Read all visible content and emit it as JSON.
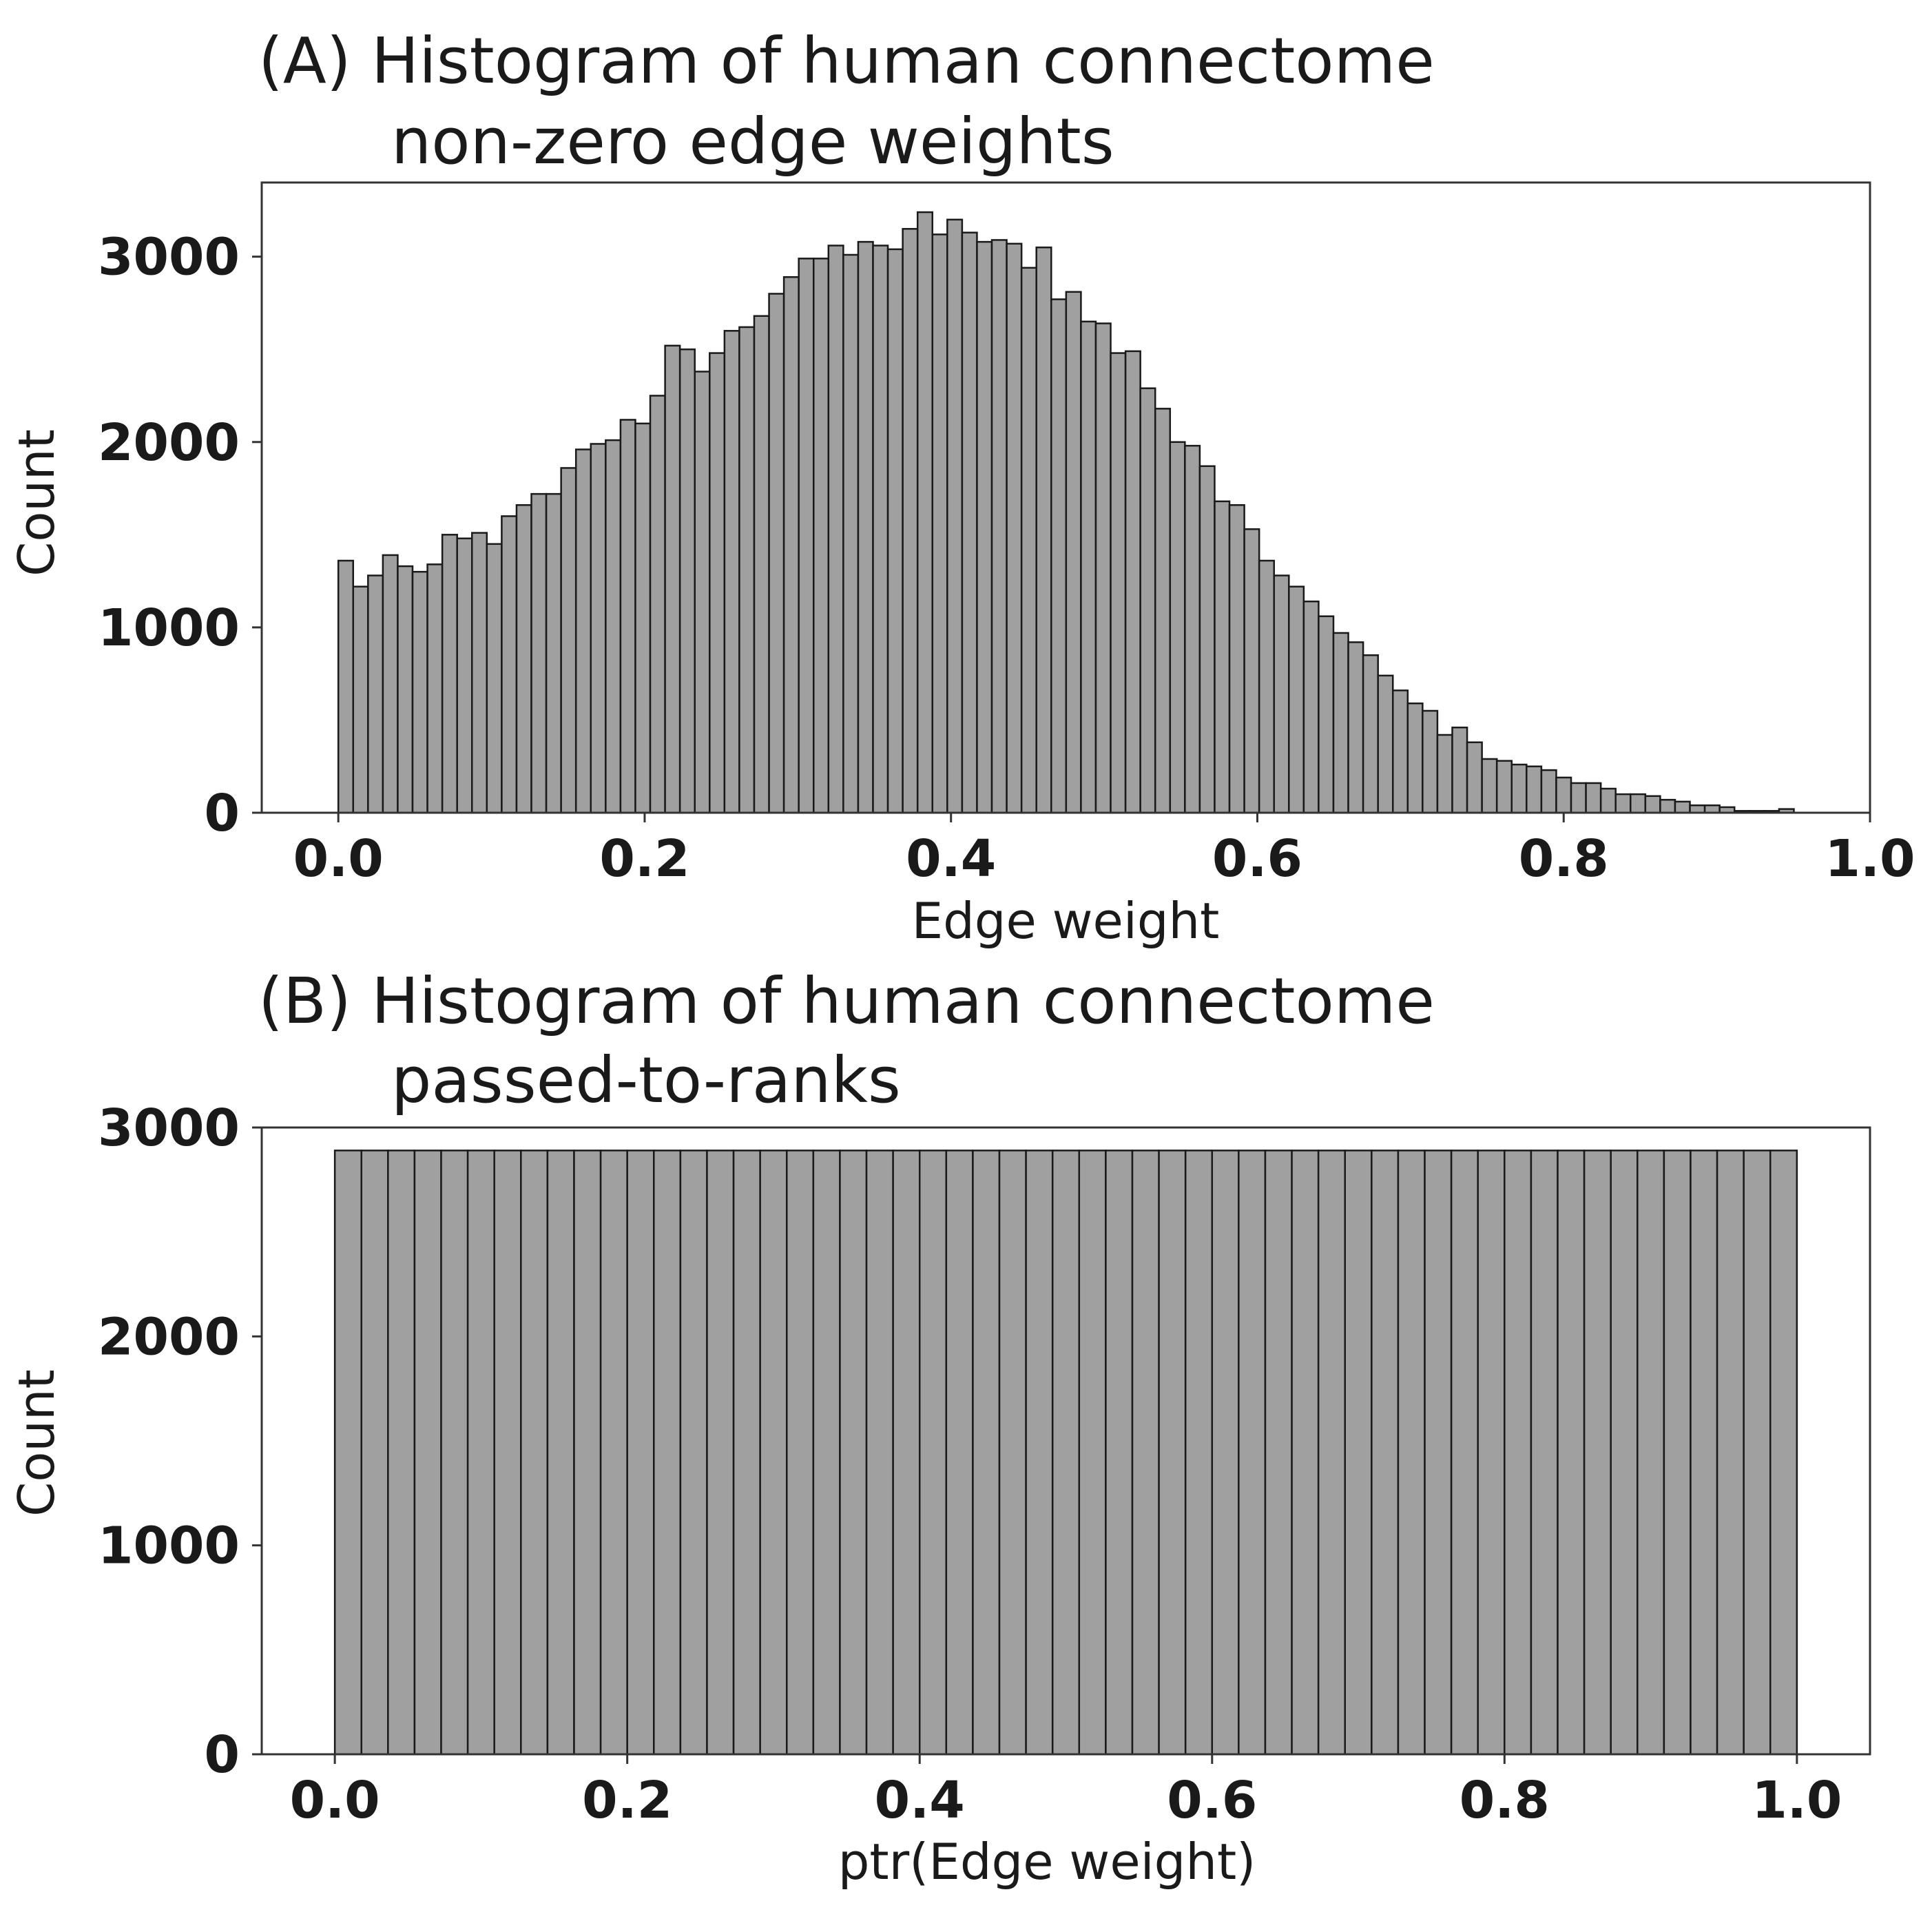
{
  "colors": {
    "bar_fill": "#a0a0a0",
    "bar_edge": "#1a1a1a",
    "text": "#1a1a1a"
  },
  "chart_data": [
    {
      "type": "bar",
      "title_lines": [
        "(A) Histogram of human connectome",
        "non-zero edge weights"
      ],
      "xlabel": "Edge weight",
      "ylabel": "Count",
      "xlim": [
        -0.05,
        1.0
      ],
      "ylim": [
        0,
        3400
      ],
      "xticks": [
        "0.0",
        "0.2",
        "0.4",
        "0.6",
        "0.8",
        "1.0"
      ],
      "yticks": [
        "0",
        "1000",
        "2000",
        "3000"
      ],
      "bin_range": [
        0.0,
        0.96
      ],
      "values": [
        1360,
        1220,
        1280,
        1390,
        1330,
        1300,
        1340,
        1500,
        1480,
        1510,
        1450,
        1600,
        1660,
        1720,
        1720,
        1860,
        1960,
        1990,
        2010,
        2120,
        2100,
        2250,
        2520,
        2500,
        2380,
        2480,
        2600,
        2620,
        2680,
        2800,
        2890,
        2990,
        2990,
        3060,
        3010,
        3080,
        3060,
        3040,
        3150,
        3240,
        3120,
        3200,
        3130,
        3080,
        3090,
        3070,
        2940,
        3050,
        2770,
        2810,
        2650,
        2640,
        2480,
        2490,
        2290,
        2180,
        2000,
        1980,
        1870,
        1680,
        1660,
        1530,
        1360,
        1280,
        1220,
        1140,
        1060,
        970,
        920,
        850,
        740,
        660,
        590,
        550,
        420,
        460,
        380,
        290,
        280,
        260,
        250,
        230,
        190,
        160,
        160,
        130,
        100,
        100,
        90,
        70,
        60,
        40,
        40,
        30,
        10,
        10,
        10,
        20,
        0
      ]
    },
    {
      "type": "bar",
      "title_lines": [
        "(B) Histogram of human connectome",
        "passed-to-ranks"
      ],
      "xlabel": "ptr(Edge weight)",
      "ylabel": "Count",
      "xlim": [
        -0.05,
        1.05
      ],
      "ylim": [
        0,
        3000
      ],
      "xticks": [
        "0.0",
        "0.2",
        "0.4",
        "0.6",
        "0.8",
        "1.0"
      ],
      "yticks": [
        "0",
        "1000",
        "2000",
        "3000"
      ],
      "bin_range": [
        0.0,
        1.0
      ],
      "values": [
        2890,
        2890,
        2890,
        2890,
        2890,
        2890,
        2890,
        2890,
        2890,
        2890,
        2890,
        2890,
        2890,
        2890,
        2890,
        2890,
        2890,
        2890,
        2890,
        2890,
        2890,
        2890,
        2890,
        2890,
        2890,
        2890,
        2890,
        2890,
        2890,
        2890,
        2890,
        2890,
        2890,
        2890,
        2890,
        2890,
        2890,
        2890,
        2890,
        2890,
        2890,
        2890,
        2890,
        2890,
        2890,
        2890,
        2890,
        2890,
        2890,
        2890,
        2890,
        2890,
        2890,
        2890,
        2890
      ]
    }
  ]
}
